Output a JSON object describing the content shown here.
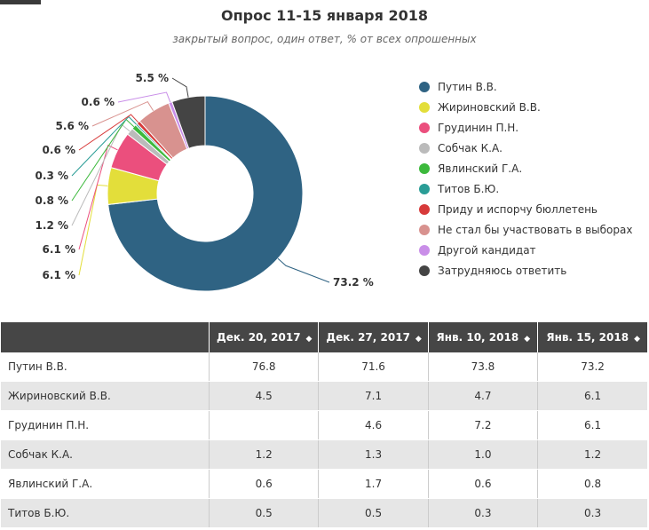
{
  "chart_data": {
    "type": "pie",
    "title": "Опрос 11-15 января 2018",
    "subtitle": "закрытый вопрос, один ответ, % от всех опрошенных",
    "donut": true,
    "legend_position": "right",
    "slices": [
      {
        "label": "Путин В.В.",
        "value": 73.2,
        "value_label": "73.2 %",
        "color": "#2f6383"
      },
      {
        "label": "Жириновский В.В.",
        "value": 6.1,
        "value_label": "6.1 %",
        "color": "#e3de3a"
      },
      {
        "label": "Грудинин П.Н.",
        "value": 6.1,
        "value_label": "6.1 %",
        "color": "#eb4f7d"
      },
      {
        "label": "Собчак К.А.",
        "value": 1.2,
        "value_label": "1.2 %",
        "color": "#bbbbbb"
      },
      {
        "label": "Явлинский Г.А.",
        "value": 0.8,
        "value_label": "0.8 %",
        "color": "#3cb93c"
      },
      {
        "label": "Титов Б.Ю.",
        "value": 0.3,
        "value_label": "0.3 %",
        "color": "#2a9d96"
      },
      {
        "label": "Приду и испорчу бюллетень",
        "value": 0.6,
        "value_label": "0.6 %",
        "color": "#d73a3a"
      },
      {
        "label": "Не стал бы участвовать в выборах",
        "value": 5.6,
        "value_label": "5.6 %",
        "color": "#d8928f"
      },
      {
        "label": "Другой кандидат",
        "value": 0.6,
        "value_label": "0.6 %",
        "color": "#c98ee8"
      },
      {
        "label": "Затрудняюсь ответить",
        "value": 5.5,
        "value_label": "5.5 %",
        "color": "#444444"
      }
    ]
  },
  "table": {
    "headers": [
      "",
      "Дек. 20, 2017",
      "Дек. 27, 2017",
      "Янв. 10, 2018",
      "Янв. 15, 2018"
    ],
    "sort_icon": "sort-icon",
    "rows": [
      [
        "Путин В.В.",
        "76.8",
        "71.6",
        "73.8",
        "73.2"
      ],
      [
        "Жириновский В.В.",
        "4.5",
        "7.1",
        "4.7",
        "6.1"
      ],
      [
        "Грудинин П.Н.",
        "",
        "4.6",
        "7.2",
        "6.1"
      ],
      [
        "Собчак К.А.",
        "1.2",
        "1.3",
        "1.0",
        "1.2"
      ],
      [
        "Явлинский Г.А.",
        "0.6",
        "1.7",
        "0.6",
        "0.8"
      ],
      [
        "Титов Б.Ю.",
        "0.5",
        "0.5",
        "0.3",
        "0.3"
      ]
    ]
  }
}
